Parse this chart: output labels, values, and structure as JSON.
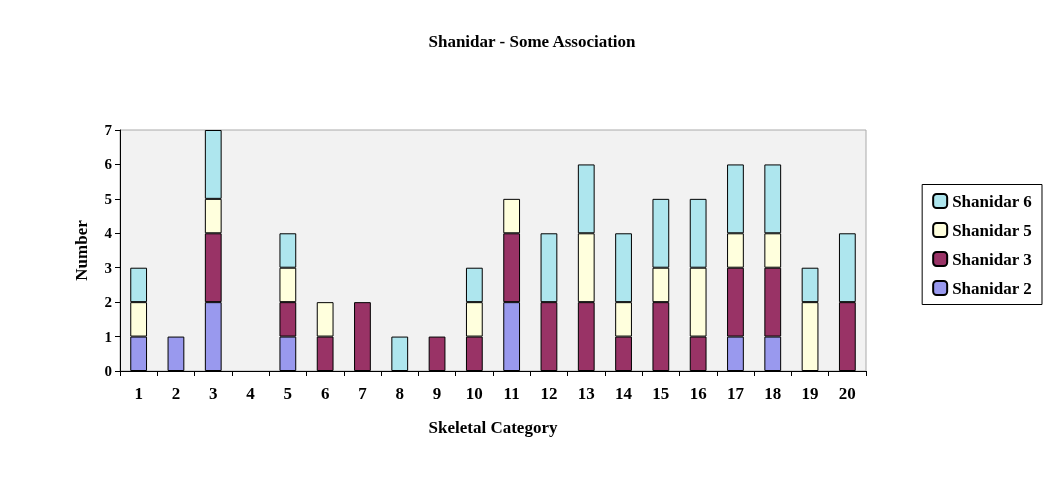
{
  "chart_data": {
    "type": "bar",
    "title": "Shanidar - Some Association",
    "xlabel": "Skeletal Category",
    "ylabel": "Number",
    "categories": [
      "1",
      "2",
      "3",
      "4",
      "5",
      "6",
      "7",
      "8",
      "9",
      "10",
      "11",
      "12",
      "13",
      "14",
      "15",
      "16",
      "17",
      "18",
      "19",
      "20"
    ],
    "stacked": true,
    "ylim": [
      0,
      7
    ],
    "yticks": [
      0,
      1,
      2,
      3,
      4,
      5,
      6,
      7
    ],
    "grid": false,
    "legend": "right",
    "series": [
      {
        "name": "Shanidar 2",
        "color": "#9999ee",
        "values": [
          1,
          1,
          2,
          0,
          1,
          0,
          0,
          0,
          0,
          0,
          2,
          0,
          0,
          0,
          0,
          0,
          1,
          1,
          0,
          0
        ]
      },
      {
        "name": "Shanidar 3",
        "color": "#993366",
        "values": [
          0,
          0,
          2,
          0,
          1,
          1,
          2,
          0,
          1,
          1,
          2,
          2,
          2,
          1,
          2,
          1,
          2,
          2,
          0,
          2
        ]
      },
      {
        "name": "Shanidar 5",
        "color": "#ffffdd",
        "values": [
          1,
          0,
          1,
          0,
          1,
          1,
          0,
          0,
          0,
          1,
          1,
          0,
          2,
          1,
          1,
          2,
          1,
          1,
          2,
          0
        ]
      },
      {
        "name": "Shanidar 6",
        "color": "#aee6ee",
        "values": [
          1,
          0,
          2,
          0,
          1,
          0,
          0,
          1,
          0,
          1,
          0,
          2,
          2,
          2,
          2,
          2,
          2,
          2,
          1,
          2
        ]
      }
    ]
  }
}
